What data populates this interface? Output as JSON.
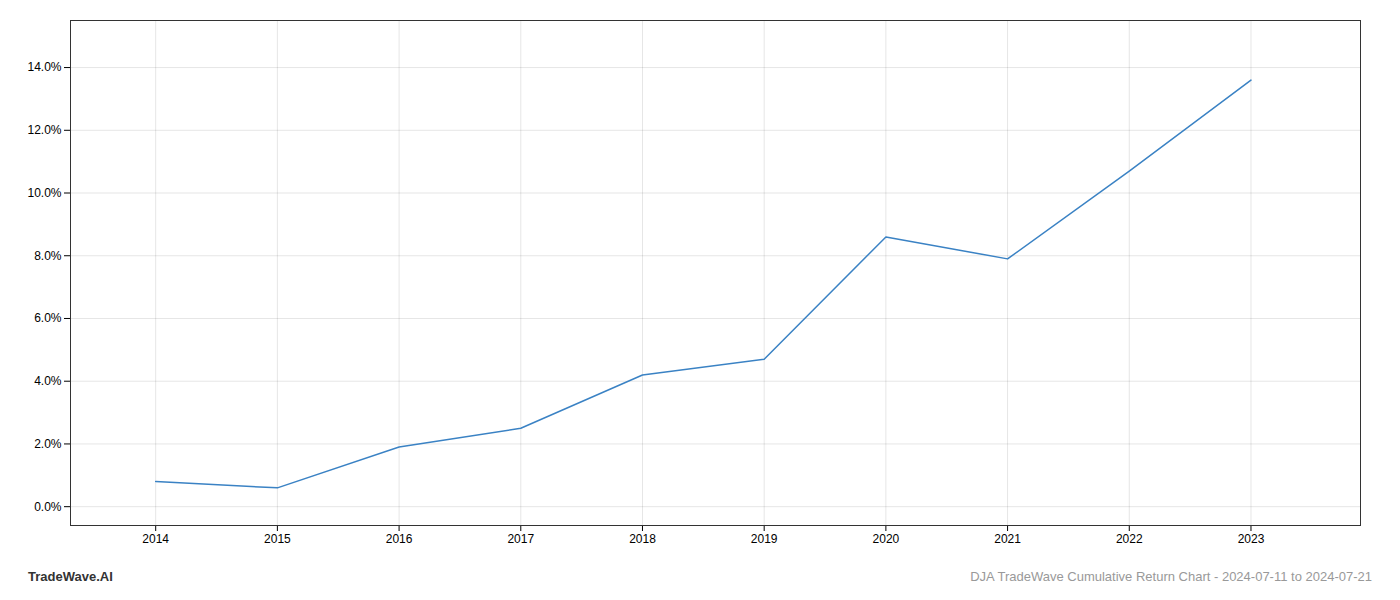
{
  "chart_data": {
    "type": "line",
    "x": [
      2014,
      2015,
      2016,
      2017,
      2018,
      2019,
      2020,
      2021,
      2022,
      2023
    ],
    "values": [
      0.008,
      0.006,
      0.019,
      0.025,
      0.042,
      0.047,
      0.086,
      0.079,
      0.107,
      0.136
    ],
    "color": "#3a82c4",
    "xlim": [
      2013.3,
      2023.9
    ],
    "ylim": [
      -0.006,
      0.155
    ],
    "xticks": [
      2014,
      2015,
      2016,
      2017,
      2018,
      2019,
      2020,
      2021,
      2022,
      2023
    ],
    "yticks": [
      {
        "value": 0.0,
        "label": "0.0%"
      },
      {
        "value": 0.02,
        "label": "2.0%"
      },
      {
        "value": 0.04,
        "label": "4.0%"
      },
      {
        "value": 0.06,
        "label": "6.0%"
      },
      {
        "value": 0.08,
        "label": "8.0%"
      },
      {
        "value": 0.1,
        "label": "10.0%"
      },
      {
        "value": 0.12,
        "label": "12.0%"
      },
      {
        "value": 0.14,
        "label": "14.0%"
      }
    ],
    "grid": true,
    "annotations": [
      {
        "text": "TradeWave.AI",
        "color": "#333333"
      },
      {
        "text": "DJA TradeWave Cumulative Return Chart - 2024-07-11 to 2024-07-21",
        "color": "#999999"
      }
    ]
  }
}
